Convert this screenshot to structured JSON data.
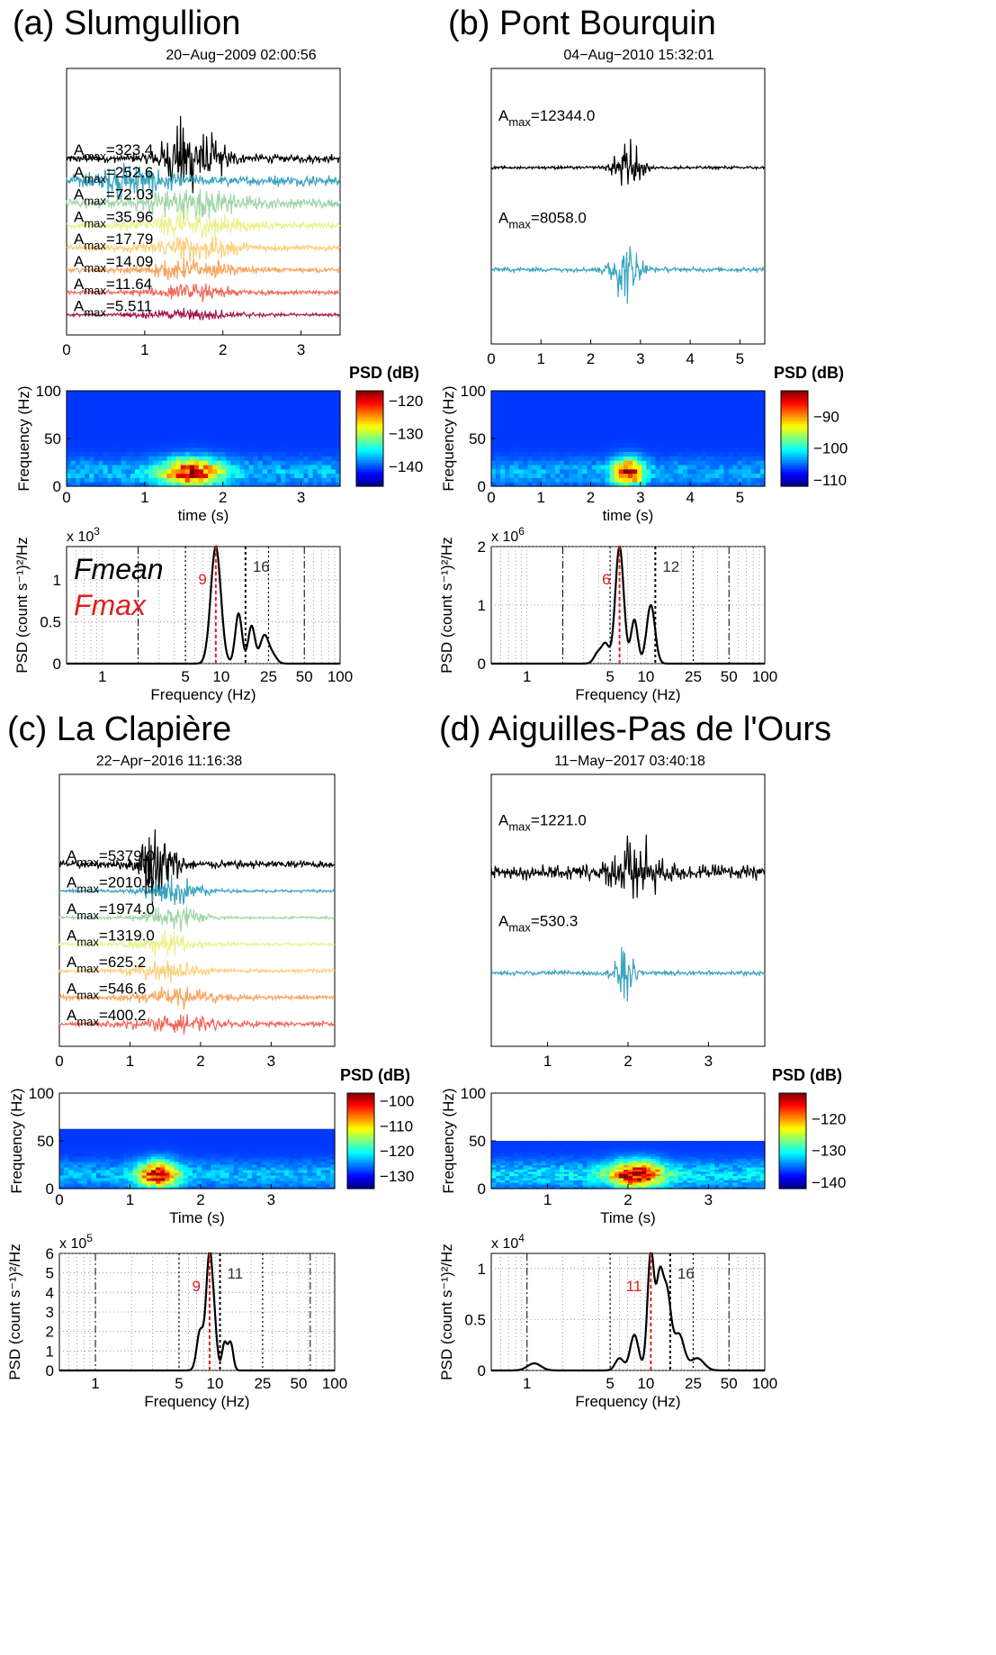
{
  "chart_data": [
    {
      "panel": "a",
      "title": "(a) Slumgullion",
      "date": "20−Aug−2009 02:00:56",
      "waveforms": {
        "type": "line",
        "xlim": [
          0,
          3.5
        ],
        "xticks": [
          0,
          1,
          2,
          3
        ],
        "traces": [
          {
            "amax": "=323.4",
            "color": "#000000",
            "center": 1.6,
            "width": 0.7,
            "noise": 0.1
          },
          {
            "amax": "=252.6",
            "color": "#3aa4bf",
            "center": 0.8,
            "width": 0.9,
            "noise": 0.35
          },
          {
            "amax": "=72.03",
            "color": "#9fd6a6",
            "center": 1.6,
            "width": 1.2,
            "noise": 0.35
          },
          {
            "amax": "=35.96",
            "color": "#ecf08e",
            "center": 1.6,
            "width": 1.2,
            "noise": 0.3
          },
          {
            "amax": "=17.79",
            "color": "#fcd07a",
            "center": 1.6,
            "width": 1.2,
            "noise": 0.3
          },
          {
            "amax": "=14.09",
            "color": "#f9a55d",
            "center": 1.6,
            "width": 1.2,
            "noise": 0.3
          },
          {
            "amax": "=11.64",
            "color": "#f0665a",
            "center": 1.6,
            "width": 1.2,
            "noise": 0.3
          },
          {
            "amax": "=5.511",
            "color": "#a4154a",
            "center": 1.6,
            "width": 1.2,
            "noise": 0.3
          }
        ]
      },
      "spectrogram": {
        "type": "heatmap",
        "xlabel": "time (s)",
        "ylabel": "Frequency (Hz)",
        "xlim": [
          0,
          3.5
        ],
        "xticks": [
          0,
          1,
          2,
          3
        ],
        "ylim": [
          0,
          100
        ],
        "yticks": [
          0,
          50,
          100
        ],
        "cbar_label": "PSD (dB)",
        "cbar_range": [
          -146,
          -117
        ],
        "cbar_ticks": [
          -120,
          -130,
          -140
        ],
        "fmax_band": 100
      },
      "spectrum": {
        "type": "line",
        "xlabel": "Frequency (Hz)",
        "ylabel": "PSD (count  s⁻¹)²/Hz",
        "xscale": "log",
        "xlim": [
          0.5,
          100
        ],
        "xticks": [
          "1",
          "5",
          "10",
          "25",
          "50",
          "100"
        ],
        "ylim": [
          0,
          1.4
        ],
        "yticks": [
          "0",
          "0.5",
          "1"
        ],
        "exponent": "x 10",
        "exponent_power": "3",
        "fmax": 9,
        "fmax_label": "9",
        "fmean": 16,
        "fmean_label": "16",
        "dashdot_lines": [
          2,
          50
        ],
        "legend": [
          "Fmean",
          "Fmax"
        ],
        "peaks": [
          [
            9,
            1.4,
            0.06
          ],
          [
            14,
            0.6,
            0.04
          ],
          [
            18,
            0.45,
            0.04
          ],
          [
            23,
            0.33,
            0.05
          ],
          [
            27,
            0.1,
            0.05
          ]
        ]
      }
    },
    {
      "panel": "b",
      "title": "(b) Pont Bourquin",
      "date": "04−Aug−2010 15:32:01",
      "waveforms": {
        "type": "line",
        "xlim": [
          0,
          5.5
        ],
        "xticks": [
          0,
          1,
          2,
          3,
          4,
          5
        ],
        "traces": [
          {
            "amax": "=12344.0",
            "color": "#000000",
            "center": 2.75,
            "width": 0.55,
            "noise": 0.05
          },
          {
            "amax": "=8058.0",
            "color": "#3aa4bf",
            "center": 2.7,
            "width": 0.6,
            "noise": 0.08
          }
        ]
      },
      "spectrogram": {
        "type": "heatmap",
        "xlabel": "time (s)",
        "ylabel": "Frequency (Hz)",
        "xlim": [
          0,
          5.5
        ],
        "xticks": [
          0,
          1,
          2,
          3,
          4,
          5
        ],
        "ylim": [
          0,
          100
        ],
        "yticks": [
          0,
          50,
          100
        ],
        "cbar_label": "PSD (dB)",
        "cbar_range": [
          -112,
          -82
        ],
        "cbar_ticks": [
          -90,
          -100,
          -110
        ],
        "fmax_band": 100
      },
      "spectrum": {
        "type": "line",
        "xlabel": "Frequency (Hz)",
        "ylabel": "PSD (count  s⁻¹)²/Hz",
        "xscale": "log",
        "xlim": [
          0.5,
          100
        ],
        "xticks": [
          "1",
          "5",
          "10",
          "25",
          "50",
          "100"
        ],
        "ylim": [
          0,
          2
        ],
        "yticks": [
          "0",
          "1",
          "2"
        ],
        "exponent": "x 10",
        "exponent_power": "6",
        "fmax": 6,
        "fmax_label": "6",
        "fmean": 12,
        "fmean_label": "12",
        "dashdot_lines": [
          2,
          50
        ],
        "legend": [],
        "peaks": [
          [
            4,
            0.2,
            0.05
          ],
          [
            4.6,
            0.3,
            0.04
          ],
          [
            6,
            2.0,
            0.05
          ],
          [
            8,
            0.75,
            0.04
          ],
          [
            11,
            1.0,
            0.05
          ]
        ]
      }
    },
    {
      "panel": "c",
      "title": "(c) La Clapière",
      "date": "22−Apr−2016 11:16:38",
      "waveforms": {
        "type": "line",
        "xlim": [
          0,
          3.9
        ],
        "xticks": [
          0,
          1,
          2,
          3
        ],
        "traces": [
          {
            "amax": "=5379.0",
            "color": "#000000",
            "center": 1.4,
            "width": 0.5,
            "noise": 0.1
          },
          {
            "amax": "=2010.0",
            "color": "#3aa4bf",
            "center": 1.6,
            "width": 0.8,
            "noise": 0.1
          },
          {
            "amax": "=1974.0",
            "color": "#9fd6a6",
            "center": 1.6,
            "width": 0.8,
            "noise": 0.1
          },
          {
            "amax": "=1319.0",
            "color": "#ecf08e",
            "center": 1.5,
            "width": 0.8,
            "noise": 0.15
          },
          {
            "amax": "=625.2",
            "color": "#fcd07a",
            "center": 1.5,
            "width": 0.9,
            "noise": 0.2
          },
          {
            "amax": "=546.6",
            "color": "#f9a55d",
            "center": 1.7,
            "width": 1.1,
            "noise": 0.3
          },
          {
            "amax": "=400.2",
            "color": "#f0665a",
            "center": 1.7,
            "width": 1.2,
            "noise": 0.4
          }
        ]
      },
      "spectrogram": {
        "type": "heatmap",
        "xlabel": "Time (s)",
        "ylabel": "Frequency (Hz)",
        "xlim": [
          0,
          3.9
        ],
        "xticks": [
          0,
          1,
          2,
          3
        ],
        "ylim": [
          0,
          100
        ],
        "yticks": [
          0,
          50,
          100
        ],
        "cbar_label": "PSD (dB)",
        "cbar_range": [
          -135,
          -97
        ],
        "cbar_ticks": [
          -100,
          -110,
          -120,
          -130
        ],
        "fmax_band": 62.5
      },
      "spectrum": {
        "type": "line",
        "xlabel": "Frequency (Hz)",
        "ylabel": "PSD (count  s⁻¹)²/Hz",
        "xscale": "log",
        "xlim": [
          0.5,
          100
        ],
        "xticks": [
          "1",
          "5",
          "10",
          "25",
          "50",
          "100"
        ],
        "ylim": [
          0,
          6
        ],
        "yticks": [
          "0",
          "1",
          "2",
          "3",
          "4",
          "5",
          "6"
        ],
        "exponent": "x 10",
        "exponent_power": "5",
        "fmax": 9,
        "fmax_label": "9",
        "fmean": 11,
        "fmean_label": "11",
        "dashdot_lines": [
          1,
          62.5
        ],
        "legend": [],
        "peaks": [
          [
            7.5,
            2.0,
            0.04
          ],
          [
            9,
            6.0,
            0.04
          ],
          [
            10,
            1.3,
            0.03
          ],
          [
            12,
            1.4,
            0.03
          ],
          [
            13.5,
            1.4,
            0.03
          ]
        ]
      }
    },
    {
      "panel": "d",
      "title": "(d) Aiguilles-Pas de l'Ours",
      "date": "11−May−2017 03:40:18",
      "waveforms": {
        "type": "line",
        "xlim": [
          0.3,
          3.7
        ],
        "xticks": [
          1,
          2,
          3
        ],
        "traces": [
          {
            "amax": "=1221.0",
            "color": "#000000",
            "center": 2.1,
            "width": 0.6,
            "noise": 0.25
          },
          {
            "amax": "=530.3",
            "color": "#3aa4bf",
            "center": 1.95,
            "width": 0.25,
            "noise": 0.08
          }
        ]
      },
      "spectrogram": {
        "type": "heatmap",
        "xlabel": "Time (s)",
        "ylabel": "Frequency (Hz)",
        "xlim": [
          0.3,
          3.7
        ],
        "xticks": [
          1,
          2,
          3
        ],
        "ylim": [
          0,
          100
        ],
        "yticks": [
          0,
          50,
          100
        ],
        "cbar_label": "PSD (dB)",
        "cbar_range": [
          -142,
          -112
        ],
        "cbar_ticks": [
          -120,
          -130,
          -140
        ],
        "fmax_band": 50
      },
      "spectrum": {
        "type": "line",
        "xlabel": "Frequency (Hz)",
        "ylabel": "PSD (count  s⁻¹)²/Hz",
        "xscale": "log",
        "xlim": [
          0.5,
          100
        ],
        "xticks": [
          "1",
          "5",
          "10",
          "25",
          "50",
          "100"
        ],
        "ylim": [
          0,
          1.15
        ],
        "yticks": [
          "0",
          "0.5",
          "1"
        ],
        "exponent": "x 10",
        "exponent_power": "4",
        "fmax": 11,
        "fmax_label": "11",
        "fmean": 16,
        "fmean_label": "16",
        "dashdot_lines": [
          1,
          50
        ],
        "legend": [],
        "peaks": [
          [
            1.15,
            0.07,
            0.08
          ],
          [
            6,
            0.12,
            0.05
          ],
          [
            8,
            0.35,
            0.05
          ],
          [
            11,
            1.15,
            0.04
          ],
          [
            13,
            0.8,
            0.04
          ],
          [
            15,
            0.75,
            0.05
          ],
          [
            19,
            0.35,
            0.06
          ],
          [
            27,
            0.12,
            0.08
          ]
        ]
      }
    }
  ]
}
